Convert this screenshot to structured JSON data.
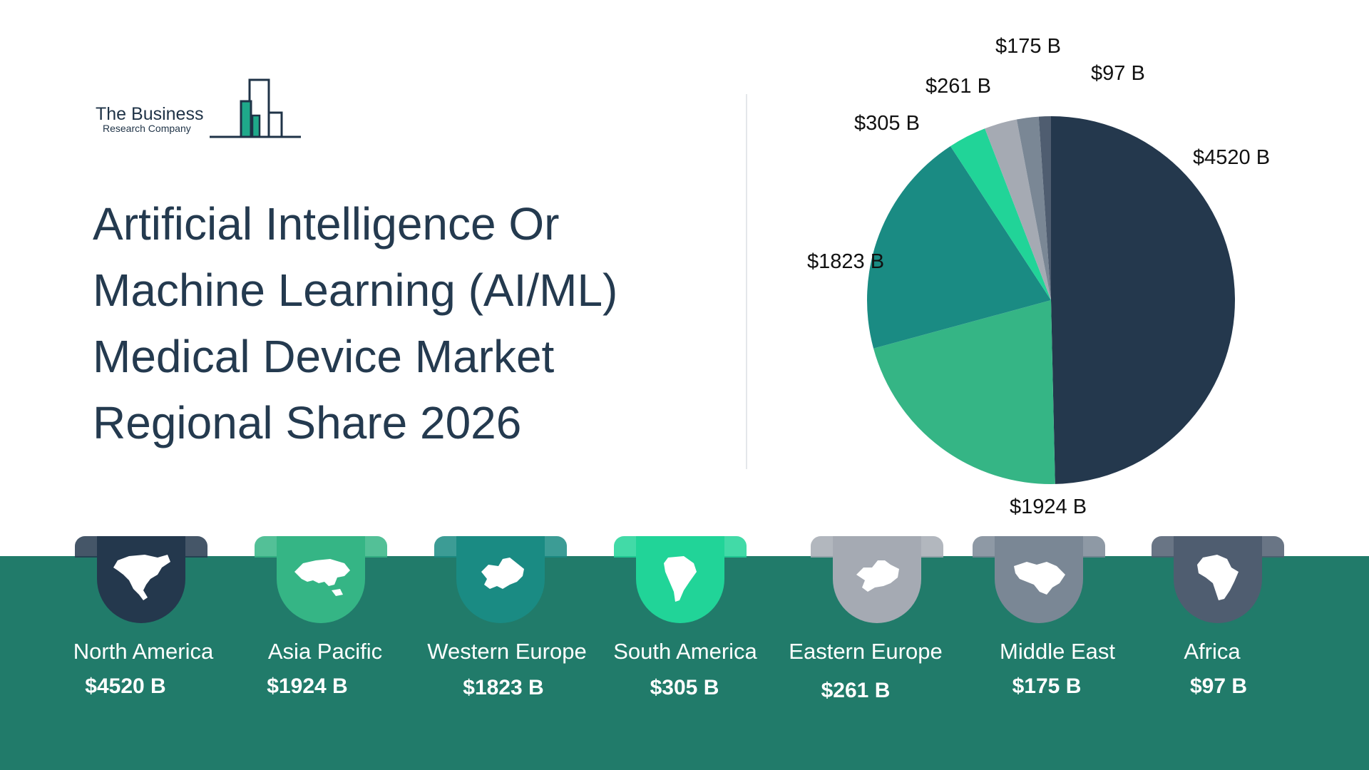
{
  "logo": {
    "line1": "The Business",
    "line2": "Research Company"
  },
  "title_lines": [
    "Artificial Intelligence Or",
    "Machine Learning (AI/ML)",
    "Medical Device Market",
    "Regional Share 2026"
  ],
  "chart_data": {
    "type": "pie",
    "unit": "B",
    "slices": [
      {
        "label": "North America",
        "value": 4520,
        "display": "$4520 B",
        "color": "#24384d"
      },
      {
        "label": "Asia Pacific",
        "value": 1924,
        "display": "$1924 B",
        "color": "#35b585"
      },
      {
        "label": "Western Europe",
        "value": 1823,
        "display": "$1823 B",
        "color": "#1a8b83"
      },
      {
        "label": "South America",
        "value": 305,
        "display": "$305 B",
        "color": "#21d498"
      },
      {
        "label": "Eastern Europe",
        "value": 261,
        "display": "$261 B",
        "color": "#a5aab3"
      },
      {
        "label": "Middle East",
        "value": 175,
        "display": "$175 B",
        "color": "#7a8795"
      },
      {
        "label": "Africa",
        "value": 97,
        "display": "$97 B",
        "color": "#4f5d70"
      }
    ]
  },
  "regions": [
    {
      "name": "North America",
      "value": "$4520 B",
      "color": "#24384d",
      "icon": "north-america-map-icon"
    },
    {
      "name": "Asia Pacific",
      "value": "$1924 B",
      "color": "#35b585",
      "icon": "asia-pacific-map-icon"
    },
    {
      "name": "Western Europe",
      "value": "$1823 B",
      "color": "#1a8b83",
      "icon": "western-europe-map-icon"
    },
    {
      "name": "South America",
      "value": "$305 B",
      "color": "#21d498",
      "icon": "south-america-map-icon"
    },
    {
      "name": "Eastern Europe",
      "value": "$261 B",
      "color": "#a5aab3",
      "icon": "eastern-europe-map-icon"
    },
    {
      "name": "Middle East",
      "value": "$175 B",
      "color": "#7a8795",
      "icon": "middle-east-map-icon"
    },
    {
      "name": "Africa",
      "value": "$97 B",
      "color": "#4f5d70",
      "icon": "africa-map-icon"
    }
  ],
  "band_color": "#217b6a"
}
